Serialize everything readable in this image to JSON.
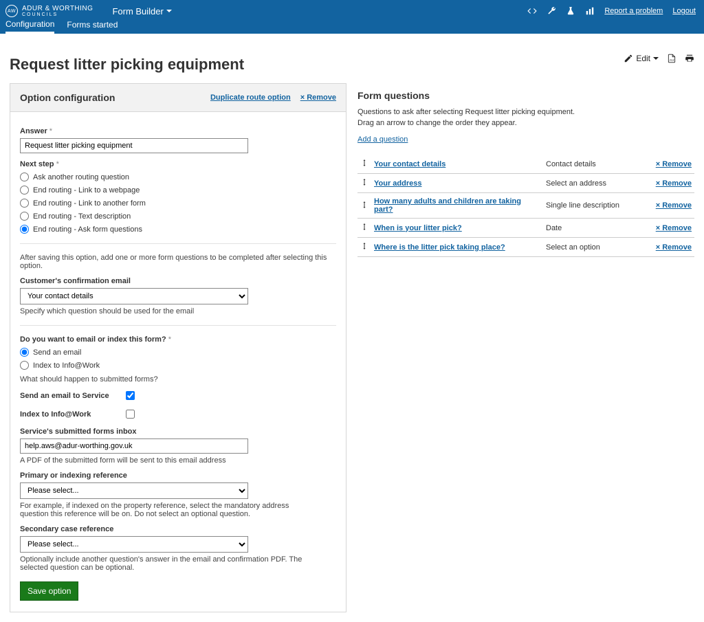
{
  "topbar": {
    "brand_main": "ADUR & WORTHING",
    "brand_sub": "COUNCILS",
    "app_title": "Form Builder",
    "tabs": [
      {
        "label": "Configuration",
        "active": true
      },
      {
        "label": "Forms started",
        "active": false
      }
    ],
    "right_links": {
      "report": "Report a problem",
      "logout": "Logout"
    }
  },
  "page": {
    "title": "Request litter picking equipment",
    "edit_label": "Edit"
  },
  "panel": {
    "heading": "Option configuration",
    "dup_link": "Duplicate route option",
    "remove_link": "× Remove"
  },
  "form": {
    "answer_label": "Answer",
    "answer_value": "Request litter picking equipment",
    "next_step_label": "Next step",
    "next_step_options": [
      "Ask another routing question",
      "End routing - Link to a webpage",
      "End routing - Link to another form",
      "End routing - Text description",
      "End routing - Ask form questions"
    ],
    "next_step_selected_index": 4,
    "after_save_hint": "After saving this option, add one or more form questions to be completed after selecting this option.",
    "conf_email_label": "Customer's confirmation email",
    "conf_email_value": "Your contact details",
    "conf_email_hint": "Specify which question should be used for the email",
    "email_index_label": "Do you want to email or index this form?",
    "email_index_options": [
      "Send an email",
      "Index to Info@Work"
    ],
    "email_index_selected_index": 0,
    "what_happen_hint": "What should happen to submitted forms?",
    "chk_send_label": "Send an email to Service",
    "chk_send_checked": true,
    "chk_index_label": "Index to Info@Work",
    "chk_index_checked": false,
    "inbox_label": "Service's submitted forms inbox",
    "inbox_value": "help.aws@adur-worthing.gov.uk",
    "inbox_hint": "A PDF of the submitted form will be sent to this email address",
    "primary_ref_label": "Primary or indexing reference",
    "primary_ref_value": "Please select...",
    "primary_ref_hint": "For example, if indexed on the property reference, select the mandatory address question this reference will be on. Do not select an optional question.",
    "secondary_ref_label": "Secondary case reference",
    "secondary_ref_value": "Please select...",
    "secondary_ref_hint": "Optionally include another question's answer in the email and confirmation PDF. The selected question can be optional.",
    "save_label": "Save option"
  },
  "questions": {
    "heading": "Form questions",
    "desc1": "Questions to ask after selecting Request litter picking equipment.",
    "desc2": "Drag an arrow to change the order they appear.",
    "add_link": "Add a question",
    "remove_label": "× Remove",
    "items": [
      {
        "name": "Your contact details",
        "type": "Contact details"
      },
      {
        "name": "Your address",
        "type": "Select an address"
      },
      {
        "name": "How many adults and children are taking part?",
        "type": "Single line description"
      },
      {
        "name": "When is your litter pick?",
        "type": "Date"
      },
      {
        "name": "Where is the litter pick taking place?",
        "type": "Select an option"
      }
    ]
  }
}
